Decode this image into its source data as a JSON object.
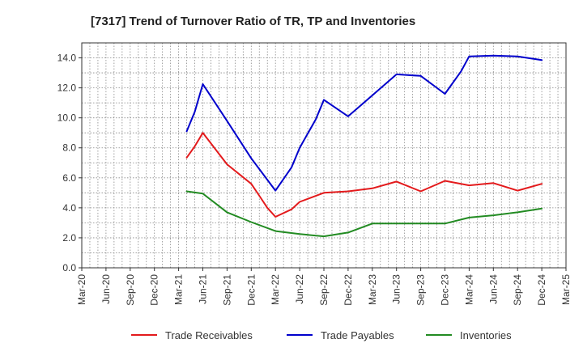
{
  "chart_data": {
    "type": "line",
    "title": "[7317]  Trend of Turnover Ratio of TR, TP and Inventories",
    "xlabel": "",
    "ylabel": "",
    "x_ticks": [
      "Mar-20",
      "Jun-20",
      "Sep-20",
      "Dec-20",
      "Mar-21",
      "Jun-21",
      "Sep-21",
      "Dec-21",
      "Mar-22",
      "Jun-22",
      "Sep-22",
      "Dec-22",
      "Mar-23",
      "Jun-23",
      "Sep-23",
      "Dec-23",
      "Mar-24",
      "Jun-24",
      "Sep-24",
      "Dec-24",
      "Mar-25"
    ],
    "y_ticks": [
      "0.0",
      "2.0",
      "4.0",
      "6.0",
      "8.0",
      "10.0",
      "12.0",
      "14.0"
    ],
    "ylim": [
      0,
      15
    ],
    "grid": true,
    "legend_position": "bottom",
    "series": [
      {
        "name": "Trade Receivables",
        "color": "#e31a1c",
        "points": [
          [
            "Apr-21",
            7.35
          ],
          [
            "May-21",
            8.1
          ],
          [
            "Jun-21",
            9.0
          ],
          [
            "Sep-21",
            6.9
          ],
          [
            "Dec-21",
            5.6
          ],
          [
            "Jan-22",
            4.8
          ],
          [
            "Feb-22",
            4.0
          ],
          [
            "Mar-22",
            3.4
          ],
          [
            "May-22",
            3.9
          ],
          [
            "Jun-22",
            4.4
          ],
          [
            "Sep-22",
            5.0
          ],
          [
            "Dec-22",
            5.1
          ],
          [
            "Mar-23",
            5.3
          ],
          [
            "Jun-23",
            5.75
          ],
          [
            "Sep-23",
            5.1
          ],
          [
            "Dec-23",
            5.8
          ],
          [
            "Mar-24",
            5.5
          ],
          [
            "Jun-24",
            5.65
          ],
          [
            "Sep-24",
            5.15
          ],
          [
            "Dec-24",
            5.6
          ]
        ]
      },
      {
        "name": "Trade Payables",
        "color": "#0000cc",
        "points": [
          [
            "Apr-21",
            9.1
          ],
          [
            "May-21",
            10.4
          ],
          [
            "Jun-21",
            12.25
          ],
          [
            "Sep-21",
            9.8
          ],
          [
            "Dec-21",
            7.3
          ],
          [
            "Mar-22",
            5.15
          ],
          [
            "May-22",
            6.7
          ],
          [
            "Jun-22",
            8.0
          ],
          [
            "Aug-22",
            9.9
          ],
          [
            "Sep-22",
            11.2
          ],
          [
            "Dec-22",
            10.1
          ],
          [
            "Mar-23",
            11.5
          ],
          [
            "Jun-23",
            12.9
          ],
          [
            "Sep-23",
            12.8
          ],
          [
            "Dec-23",
            11.6
          ],
          [
            "Feb-24",
            13.1
          ],
          [
            "Mar-24",
            14.1
          ],
          [
            "Jun-24",
            14.15
          ],
          [
            "Sep-24",
            14.1
          ],
          [
            "Dec-24",
            13.85
          ]
        ]
      },
      {
        "name": "Inventories",
        "color": "#228b22",
        "points": [
          [
            "Apr-21",
            5.1
          ],
          [
            "Jun-21",
            4.95
          ],
          [
            "Sep-21",
            3.7
          ],
          [
            "Dec-21",
            3.05
          ],
          [
            "Mar-22",
            2.45
          ],
          [
            "Jun-22",
            2.25
          ],
          [
            "Sep-22",
            2.1
          ],
          [
            "Dec-22",
            2.35
          ],
          [
            "Mar-23",
            2.95
          ],
          [
            "Jun-23",
            2.95
          ],
          [
            "Sep-23",
            2.95
          ],
          [
            "Dec-23",
            2.95
          ],
          [
            "Mar-24",
            3.35
          ],
          [
            "Jun-24",
            3.5
          ],
          [
            "Sep-24",
            3.7
          ],
          [
            "Dec-24",
            3.95
          ]
        ]
      }
    ]
  }
}
